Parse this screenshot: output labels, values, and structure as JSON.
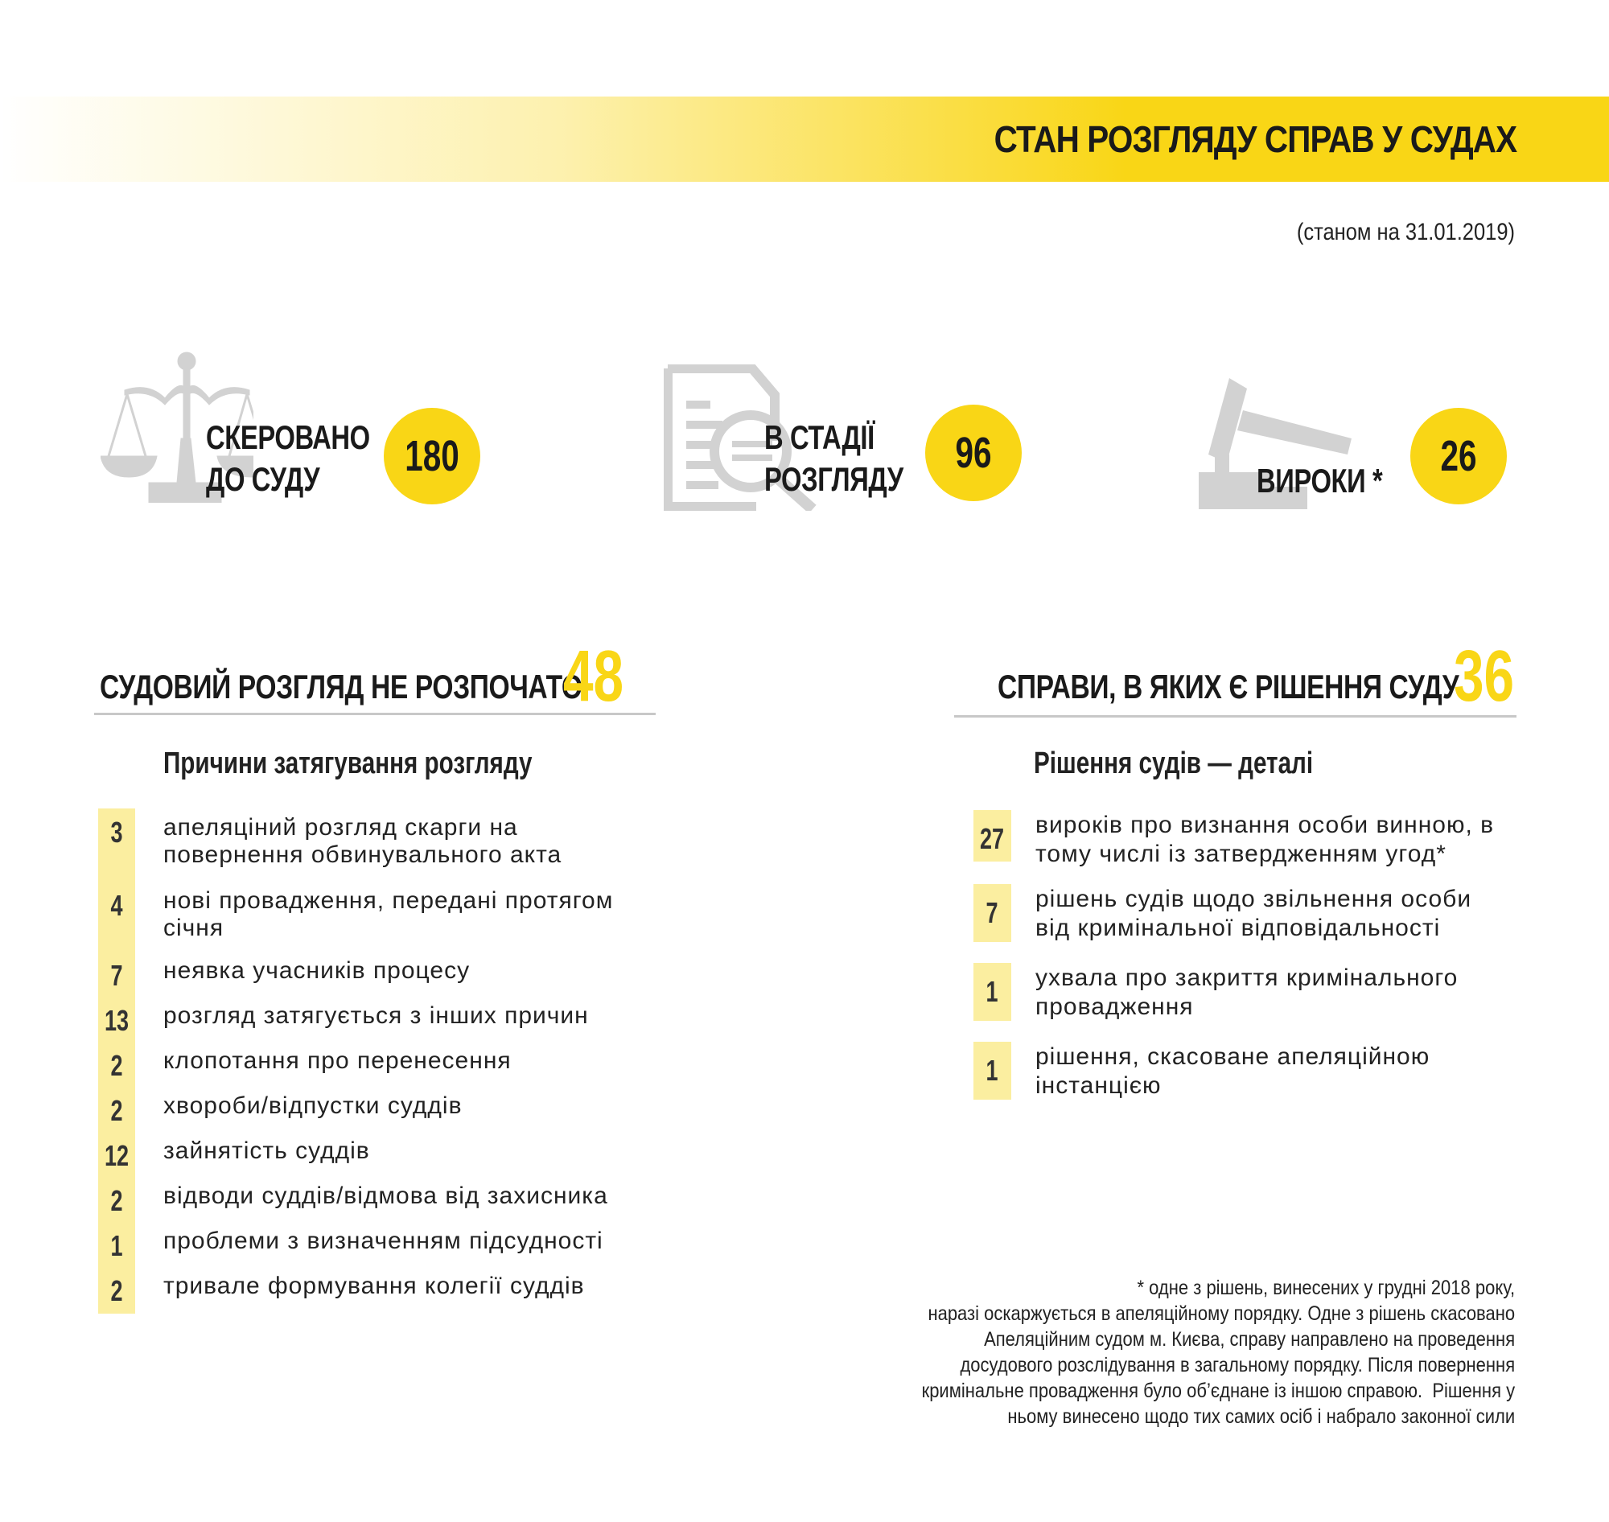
{
  "header": {
    "title": "СТАН РОЗГЛЯДУ СПРАВ У СУДАХ",
    "date_note": "(станом на 31.01.2019)"
  },
  "colors": {
    "accent": "#f9d616",
    "bar": "#fbeea0",
    "icon": "#d2d2d2"
  },
  "stats": [
    {
      "icon": "scales-icon",
      "label_line1": "СКЕРОВАНО",
      "label_line2": "ДО СУДУ",
      "value": "180"
    },
    {
      "icon": "document-search-icon",
      "label_line1": "В СТАДІЇ",
      "label_line2": "РОЗГЛЯДУ",
      "value": "96"
    },
    {
      "icon": "gavel-icon",
      "label_line1": "ВИРОКИ *",
      "value": "26"
    }
  ],
  "left_section": {
    "title": "СУДОВИЙ РОЗГЛЯД НЕ РОЗПОЧАТО",
    "total": "48",
    "subtitle": "Причини затягування розгляду",
    "items": [
      {
        "count": "3",
        "line1": "апеляціний розгляд скарги на",
        "line2": "повернення обвинувального акта"
      },
      {
        "count": "4",
        "line1": "нові провадження, передані протягом",
        "line2": "січня"
      },
      {
        "count": "7",
        "line1": "неявка учасників процесу"
      },
      {
        "count": "13",
        "line1": "розгляд затягується з інших причин"
      },
      {
        "count": "2",
        "line1": "клопотання про перенесення"
      },
      {
        "count": "2",
        "line1": "хвороби/відпустки суддів"
      },
      {
        "count": "12",
        "line1": "зайнятість суддів"
      },
      {
        "count": "2",
        "line1": "відводи суддів/відмова від захисника"
      },
      {
        "count": "1",
        "line1": "проблеми з визначенням підсудності"
      },
      {
        "count": "2",
        "line1": "тривале формування колегії суддів"
      }
    ]
  },
  "right_section": {
    "title": "СПРАВИ, В ЯКИХ Є РІШЕННЯ СУДУ",
    "total": "36",
    "subtitle": "Рішення судів — деталі",
    "items": [
      {
        "count": "27",
        "line1": "вироків про визнання особи винною, в",
        "line2": "тому числі із затвердженням угод*"
      },
      {
        "count": "7",
        "line1": "рішень судів щодо звільнення особи",
        "line2": "від кримінальної відповідальності"
      },
      {
        "count": "1",
        "line1": "ухвала про закриття кримінального",
        "line2": "провадження"
      },
      {
        "count": "1",
        "line1": "рішення, скасоване апеляційною",
        "line2": "інстанцією"
      }
    ]
  },
  "footnote": {
    "lines": [
      "* одне з рішень, винесених у грудні 2018 року,",
      "наразі оскаржується в апеляційному порядку. Одне з рішень скасовано",
      "Апеляційним судом м. Києва, справу направлено на проведення",
      "досудового розслідування в загальному порядку. Після повернення",
      "кримінальне провадження було об’єднане із іншою справою.  Рішення у",
      "ньому винесено щодо тих самих осіб і набрало законної сили"
    ]
  }
}
